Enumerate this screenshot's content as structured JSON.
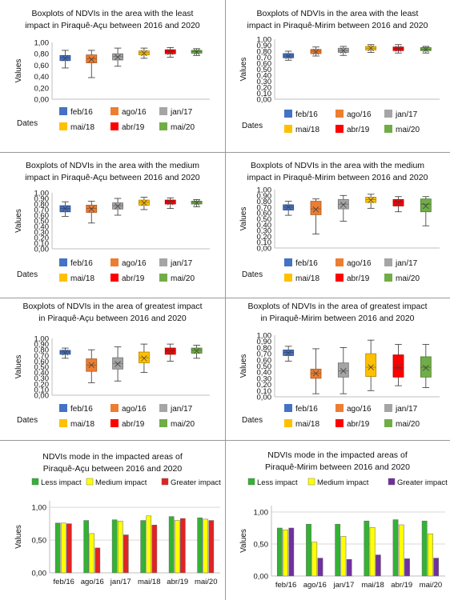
{
  "colors": {
    "feb16": "#4472c4",
    "ago16": "#ed7d31",
    "jan17": "#a5a5a5",
    "mai18": "#ffc000",
    "abr19": "#ff0000",
    "mai20": "#70ad47",
    "less": "#33b233",
    "medium": "#ffff00",
    "greater": "#e32222",
    "greater_mirim": "#7030a0"
  },
  "chart_data": [
    {
      "type": "box",
      "title": "Boxplots of NDVIs in the area with the least impact in Piraquê-Açu between 2016 and 2020",
      "title_lines": [
        "Boxplots of NDVIs in the area with the least",
        "impact in Piraquê-Açu between  2016 and 2020"
      ],
      "ylabel": "Values",
      "xlabel": "Dates",
      "ylim": [
        0,
        1
      ],
      "yticks": [
        "0,00",
        "0,20",
        "0,40",
        "0,60",
        "0,80",
        "1,00"
      ],
      "categories": [
        "feb/16",
        "ago/16",
        "jan/17",
        "mai/18",
        "abr/19",
        "mai/20"
      ],
      "boxes": [
        {
          "name": "feb/16",
          "min": 0.55,
          "q1": 0.68,
          "median": 0.73,
          "mean": 0.72,
          "q3": 0.77,
          "max": 0.86
        },
        {
          "name": "ago/16",
          "min": 0.38,
          "q1": 0.64,
          "median": 0.71,
          "mean": 0.7,
          "q3": 0.78,
          "max": 0.86
        },
        {
          "name": "jan/17",
          "min": 0.58,
          "q1": 0.69,
          "median": 0.75,
          "mean": 0.74,
          "q3": 0.8,
          "max": 0.9
        },
        {
          "name": "mai/18",
          "min": 0.72,
          "q1": 0.78,
          "median": 0.82,
          "mean": 0.81,
          "q3": 0.85,
          "max": 0.9
        },
        {
          "name": "abr/19",
          "min": 0.74,
          "q1": 0.8,
          "median": 0.84,
          "mean": 0.83,
          "q3": 0.87,
          "max": 0.91
        },
        {
          "name": "mai/20",
          "min": 0.77,
          "q1": 0.81,
          "median": 0.84,
          "mean": 0.83,
          "q3": 0.86,
          "max": 0.89
        }
      ]
    },
    {
      "type": "box",
      "title": "Boxplots of NDVIs in the area with the least impact in Piraquê-Mirim between 2016 and 2020",
      "title_lines": [
        "Boxplots of NDVIs in the area with the least",
        "impact in Piraquê-Mirim between  2016 and 2020"
      ],
      "ylabel": "Values",
      "xlabel": "Dates",
      "ylim": [
        0,
        1
      ],
      "yticks": [
        "0,00",
        "0,10",
        "0,20",
        "0,30",
        "0,40",
        "0,50",
        "0,60",
        "0,70",
        "0,80",
        "0,90",
        "1,00"
      ],
      "categories": [
        "feb/16",
        "ago/16",
        "jan/17",
        "mai/18",
        "abr/19",
        "mai/20"
      ],
      "boxes": [
        {
          "name": "feb/16",
          "min": 0.65,
          "q1": 0.69,
          "median": 0.72,
          "mean": 0.72,
          "q3": 0.76,
          "max": 0.8
        },
        {
          "name": "ago/16",
          "min": 0.72,
          "q1": 0.76,
          "median": 0.8,
          "mean": 0.79,
          "q3": 0.83,
          "max": 0.87
        },
        {
          "name": "jan/17",
          "min": 0.73,
          "q1": 0.78,
          "median": 0.81,
          "mean": 0.81,
          "q3": 0.85,
          "max": 0.88
        },
        {
          "name": "mai/18",
          "min": 0.78,
          "q1": 0.82,
          "median": 0.85,
          "mean": 0.85,
          "q3": 0.88,
          "max": 0.91
        },
        {
          "name": "abr/19",
          "min": 0.77,
          "q1": 0.81,
          "median": 0.84,
          "mean": 0.84,
          "q3": 0.87,
          "max": 0.91
        },
        {
          "name": "mai/20",
          "min": 0.77,
          "q1": 0.81,
          "median": 0.83,
          "mean": 0.83,
          "q3": 0.86,
          "max": 0.88
        }
      ]
    },
    {
      "type": "box",
      "title": "Boxplots of NDVIs in the area with the medium impact in Piraquê-Açu between 2016 and 2020",
      "title_lines": [
        "Boxplots of NDVIs in the area with the medium",
        "impact in Piraquê-Açu between  2016 and 2020"
      ],
      "ylabel": "Values",
      "xlabel": "Dates",
      "ylim": [
        0,
        1
      ],
      "yticks": [
        "0,00",
        "0,10",
        "0,20",
        "0,30",
        "0,40",
        "0,50",
        "0,60",
        "0,70",
        "0,80",
        "0,90",
        "1,00"
      ],
      "categories": [
        "feb/16",
        "ago/16",
        "jan/17",
        "mai/18",
        "abr/19",
        "mai/20"
      ],
      "boxes": [
        {
          "name": "feb/16",
          "min": 0.58,
          "q1": 0.66,
          "median": 0.72,
          "mean": 0.72,
          "q3": 0.77,
          "max": 0.84
        },
        {
          "name": "ago/16",
          "min": 0.46,
          "q1": 0.65,
          "median": 0.72,
          "mean": 0.71,
          "q3": 0.78,
          "max": 0.85
        },
        {
          "name": "jan/17",
          "min": 0.6,
          "q1": 0.71,
          "median": 0.77,
          "mean": 0.76,
          "q3": 0.82,
          "max": 0.9
        },
        {
          "name": "mai/18",
          "min": 0.7,
          "q1": 0.78,
          "median": 0.83,
          "mean": 0.82,
          "q3": 0.87,
          "max": 0.92
        },
        {
          "name": "abr/19",
          "min": 0.72,
          "q1": 0.8,
          "median": 0.84,
          "mean": 0.83,
          "q3": 0.87,
          "max": 0.91
        },
        {
          "name": "mai/20",
          "min": 0.75,
          "q1": 0.8,
          "median": 0.83,
          "mean": 0.82,
          "q3": 0.85,
          "max": 0.88
        }
      ]
    },
    {
      "type": "box",
      "title": "Boxplots of NDVIs in the area with the medium impact in Piraquê-Mirim between 2016 and 2020",
      "title_lines": [
        "Boxplots of NDVIs in the area with the medium",
        "impact in Piraquê-Mirim between  2016 and 2020"
      ],
      "ylabel": "Values",
      "xlabel": "Dates",
      "ylim": [
        0,
        1
      ],
      "yticks": [
        "0,00",
        "0,10",
        "0,20",
        "0,30",
        "0,40",
        "0,50",
        "0,60",
        "0,70",
        "0,80",
        "0,90",
        "1,00"
      ],
      "categories": [
        "feb/16",
        "ago/16",
        "jan/17",
        "mai/18",
        "abr/19",
        "mai/20"
      ],
      "boxes": [
        {
          "name": "feb/16",
          "min": 0.56,
          "q1": 0.65,
          "median": 0.7,
          "mean": 0.7,
          "q3": 0.74,
          "max": 0.8
        },
        {
          "name": "ago/16",
          "min": 0.24,
          "q1": 0.57,
          "median": 0.67,
          "mean": 0.66,
          "q3": 0.8,
          "max": 0.84
        },
        {
          "name": "jan/17",
          "min": 0.46,
          "q1": 0.67,
          "median": 0.75,
          "mean": 0.74,
          "q3": 0.83,
          "max": 0.9
        },
        {
          "name": "mai/18",
          "min": 0.68,
          "q1": 0.78,
          "median": 0.83,
          "mean": 0.82,
          "q3": 0.87,
          "max": 0.92
        },
        {
          "name": "abr/19",
          "min": 0.62,
          "q1": 0.72,
          "median": 0.79,
          "mean": 0.77,
          "q3": 0.83,
          "max": 0.88
        },
        {
          "name": "mai/20",
          "min": 0.38,
          "q1": 0.62,
          "median": 0.75,
          "mean": 0.72,
          "q3": 0.84,
          "max": 0.88
        }
      ]
    },
    {
      "type": "box",
      "title": "Boxplots of NDVIs in the area of greatest impact in Piraquê-Açu between 2016 and 2020",
      "title_lines": [
        "Boxplots of NDVIs in the area of greatest impact",
        "in Piraquê-Açu between  2016 and 2020"
      ],
      "ylabel": "Values",
      "xlabel": "Dates",
      "ylim": [
        0,
        1
      ],
      "yticks": [
        "0,00",
        "0,10",
        "0,20",
        "0,30",
        "0,40",
        "0,50",
        "0,60",
        "0,70",
        "0,80",
        "0,90",
        "1,00"
      ],
      "categories": [
        "feb/16",
        "ago/16",
        "jan/17",
        "mai/18",
        "abr/19",
        "mai/20"
      ],
      "boxes": [
        {
          "name": "feb/16",
          "min": 0.65,
          "q1": 0.72,
          "median": 0.76,
          "mean": 0.75,
          "q3": 0.79,
          "max": 0.83
        },
        {
          "name": "ago/16",
          "min": 0.22,
          "q1": 0.42,
          "median": 0.53,
          "mean": 0.53,
          "q3": 0.64,
          "max": 0.8
        },
        {
          "name": "jan/17",
          "min": 0.25,
          "q1": 0.46,
          "median": 0.56,
          "mean": 0.55,
          "q3": 0.66,
          "max": 0.85
        },
        {
          "name": "mai/18",
          "min": 0.4,
          "q1": 0.57,
          "median": 0.66,
          "mean": 0.65,
          "q3": 0.76,
          "max": 0.9
        },
        {
          "name": "abr/19",
          "min": 0.6,
          "q1": 0.72,
          "median": 0.78,
          "mean": 0.77,
          "q3": 0.83,
          "max": 0.9
        },
        {
          "name": "mai/20",
          "min": 0.65,
          "q1": 0.74,
          "median": 0.79,
          "mean": 0.78,
          "q3": 0.83,
          "max": 0.88
        }
      ]
    },
    {
      "type": "box",
      "title": "Boxplots of NDVIs in the area of greatest impact in Piraquê-Mirim between 2016 and 2020",
      "title_lines": [
        "Boxplots of NDVIs in the area of greatest impact",
        "in Piraquê-Mirim between  2016 and 2020"
      ],
      "ylabel": "Values",
      "xlabel": "Dates",
      "ylim": [
        0,
        1
      ],
      "yticks": [
        "0,00",
        "0,10",
        "0,20",
        "0,30",
        "0,40",
        "0,50",
        "0,60",
        "0,70",
        "0,80",
        "0,90",
        "1,00"
      ],
      "categories": [
        "feb/16",
        "ago/16",
        "jan/17",
        "mai/18",
        "abr/19",
        "mai/20"
      ],
      "boxes": [
        {
          "name": "feb/16",
          "min": 0.58,
          "q1": 0.67,
          "median": 0.72,
          "mean": 0.71,
          "q3": 0.76,
          "max": 0.82
        },
        {
          "name": "ago/16",
          "min": 0.05,
          "q1": 0.3,
          "median": 0.38,
          "mean": 0.38,
          "q3": 0.45,
          "max": 0.78
        },
        {
          "name": "jan/17",
          "min": 0.05,
          "q1": 0.32,
          "median": 0.42,
          "mean": 0.42,
          "q3": 0.55,
          "max": 0.8
        },
        {
          "name": "mai/18",
          "min": 0.1,
          "q1": 0.33,
          "median": 0.48,
          "mean": 0.48,
          "q3": 0.7,
          "max": 0.92
        },
        {
          "name": "abr/19",
          "min": 0.18,
          "q1": 0.32,
          "median": 0.47,
          "mean": 0.48,
          "q3": 0.68,
          "max": 0.85
        },
        {
          "name": "mai/20",
          "min": 0.15,
          "q1": 0.32,
          "median": 0.48,
          "mean": 0.47,
          "q3": 0.65,
          "max": 0.85
        }
      ]
    },
    {
      "type": "bar",
      "title": "NDVIs mode in the impacted areas of Piraquê-Açu between 2016 and 2020",
      "title_lines": [
        "NDVIs mode in the impacted areas of",
        "Piraquê-Açu between  2016 and 2020"
      ],
      "ylabel": "Values",
      "ylim": [
        0,
        1.1
      ],
      "yticks": [
        "0,00",
        "0,50",
        "1,00"
      ],
      "categories": [
        "feb/16",
        "ago/16",
        "jan/17",
        "mai/18",
        "abr/19",
        "mai/20"
      ],
      "series": [
        {
          "name": "Less impact",
          "values": [
            0.76,
            0.8,
            0.81,
            0.8,
            0.86,
            0.84
          ]
        },
        {
          "name": "Medium impact",
          "values": [
            0.76,
            0.6,
            0.79,
            0.87,
            0.8,
            0.82
          ]
        },
        {
          "name": "Greater impact",
          "values": [
            0.75,
            0.38,
            0.58,
            0.73,
            0.83,
            0.8
          ]
        }
      ]
    },
    {
      "type": "bar",
      "title": "NDVIs mode in the impacted areas of Piraquê-Mirim between 2016 and 2020",
      "title_lines": [
        "NDVIs mode in the impacted areas of",
        "Piraquê-Mirim between  2016 and 2020"
      ],
      "ylabel": "Values",
      "ylim": [
        0,
        1.1
      ],
      "yticks": [
        "0,00",
        "0,50",
        "1,00"
      ],
      "categories": [
        "feb/16",
        "ago/16",
        "jan/17",
        "mai/18",
        "abr/19",
        "mai/20"
      ],
      "series": [
        {
          "name": "Less impact",
          "values": [
            0.75,
            0.81,
            0.81,
            0.86,
            0.88,
            0.86
          ]
        },
        {
          "name": "Medium impact",
          "values": [
            0.72,
            0.53,
            0.62,
            0.76,
            0.8,
            0.66
          ]
        },
        {
          "name": "Greater impact",
          "values": [
            0.75,
            0.28,
            0.26,
            0.33,
            0.27,
            0.28
          ]
        }
      ]
    }
  ]
}
